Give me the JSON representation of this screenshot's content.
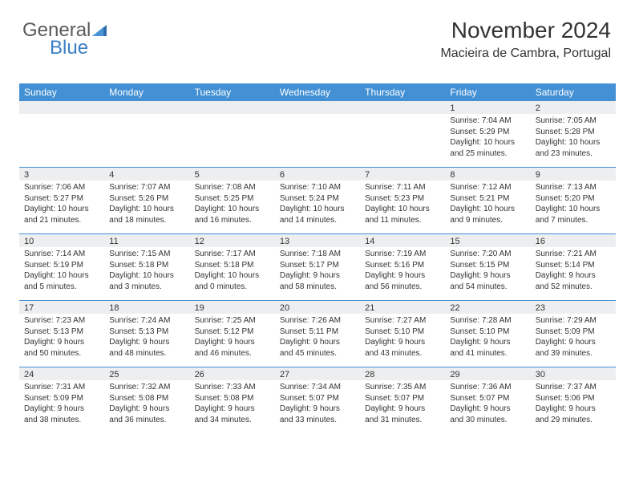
{
  "logo": {
    "text_general": "General",
    "text_blue": "Blue"
  },
  "header": {
    "title": "November 2024",
    "location": "Macieira de Cambra, Portugal"
  },
  "colors": {
    "header_bg": "#4390d4",
    "header_text": "#ffffff",
    "daynum_bg": "#eceeef",
    "border": "#4390d4",
    "text": "#333333",
    "logo_gray": "#5a5a5a",
    "logo_blue": "#3a7fc4"
  },
  "day_names": [
    "Sunday",
    "Monday",
    "Tuesday",
    "Wednesday",
    "Thursday",
    "Friday",
    "Saturday"
  ],
  "weeks": [
    [
      {
        "n": "",
        "sr": "",
        "ss": "",
        "dl": ""
      },
      {
        "n": "",
        "sr": "",
        "ss": "",
        "dl": ""
      },
      {
        "n": "",
        "sr": "",
        "ss": "",
        "dl": ""
      },
      {
        "n": "",
        "sr": "",
        "ss": "",
        "dl": ""
      },
      {
        "n": "",
        "sr": "",
        "ss": "",
        "dl": ""
      },
      {
        "n": "1",
        "sr": "Sunrise: 7:04 AM",
        "ss": "Sunset: 5:29 PM",
        "dl": "Daylight: 10 hours and 25 minutes."
      },
      {
        "n": "2",
        "sr": "Sunrise: 7:05 AM",
        "ss": "Sunset: 5:28 PM",
        "dl": "Daylight: 10 hours and 23 minutes."
      }
    ],
    [
      {
        "n": "3",
        "sr": "Sunrise: 7:06 AM",
        "ss": "Sunset: 5:27 PM",
        "dl": "Daylight: 10 hours and 21 minutes."
      },
      {
        "n": "4",
        "sr": "Sunrise: 7:07 AM",
        "ss": "Sunset: 5:26 PM",
        "dl": "Daylight: 10 hours and 18 minutes."
      },
      {
        "n": "5",
        "sr": "Sunrise: 7:08 AM",
        "ss": "Sunset: 5:25 PM",
        "dl": "Daylight: 10 hours and 16 minutes."
      },
      {
        "n": "6",
        "sr": "Sunrise: 7:10 AM",
        "ss": "Sunset: 5:24 PM",
        "dl": "Daylight: 10 hours and 14 minutes."
      },
      {
        "n": "7",
        "sr": "Sunrise: 7:11 AM",
        "ss": "Sunset: 5:23 PM",
        "dl": "Daylight: 10 hours and 11 minutes."
      },
      {
        "n": "8",
        "sr": "Sunrise: 7:12 AM",
        "ss": "Sunset: 5:21 PM",
        "dl": "Daylight: 10 hours and 9 minutes."
      },
      {
        "n": "9",
        "sr": "Sunrise: 7:13 AM",
        "ss": "Sunset: 5:20 PM",
        "dl": "Daylight: 10 hours and 7 minutes."
      }
    ],
    [
      {
        "n": "10",
        "sr": "Sunrise: 7:14 AM",
        "ss": "Sunset: 5:19 PM",
        "dl": "Daylight: 10 hours and 5 minutes."
      },
      {
        "n": "11",
        "sr": "Sunrise: 7:15 AM",
        "ss": "Sunset: 5:18 PM",
        "dl": "Daylight: 10 hours and 3 minutes."
      },
      {
        "n": "12",
        "sr": "Sunrise: 7:17 AM",
        "ss": "Sunset: 5:18 PM",
        "dl": "Daylight: 10 hours and 0 minutes."
      },
      {
        "n": "13",
        "sr": "Sunrise: 7:18 AM",
        "ss": "Sunset: 5:17 PM",
        "dl": "Daylight: 9 hours and 58 minutes."
      },
      {
        "n": "14",
        "sr": "Sunrise: 7:19 AM",
        "ss": "Sunset: 5:16 PM",
        "dl": "Daylight: 9 hours and 56 minutes."
      },
      {
        "n": "15",
        "sr": "Sunrise: 7:20 AM",
        "ss": "Sunset: 5:15 PM",
        "dl": "Daylight: 9 hours and 54 minutes."
      },
      {
        "n": "16",
        "sr": "Sunrise: 7:21 AM",
        "ss": "Sunset: 5:14 PM",
        "dl": "Daylight: 9 hours and 52 minutes."
      }
    ],
    [
      {
        "n": "17",
        "sr": "Sunrise: 7:23 AM",
        "ss": "Sunset: 5:13 PM",
        "dl": "Daylight: 9 hours and 50 minutes."
      },
      {
        "n": "18",
        "sr": "Sunrise: 7:24 AM",
        "ss": "Sunset: 5:13 PM",
        "dl": "Daylight: 9 hours and 48 minutes."
      },
      {
        "n": "19",
        "sr": "Sunrise: 7:25 AM",
        "ss": "Sunset: 5:12 PM",
        "dl": "Daylight: 9 hours and 46 minutes."
      },
      {
        "n": "20",
        "sr": "Sunrise: 7:26 AM",
        "ss": "Sunset: 5:11 PM",
        "dl": "Daylight: 9 hours and 45 minutes."
      },
      {
        "n": "21",
        "sr": "Sunrise: 7:27 AM",
        "ss": "Sunset: 5:10 PM",
        "dl": "Daylight: 9 hours and 43 minutes."
      },
      {
        "n": "22",
        "sr": "Sunrise: 7:28 AM",
        "ss": "Sunset: 5:10 PM",
        "dl": "Daylight: 9 hours and 41 minutes."
      },
      {
        "n": "23",
        "sr": "Sunrise: 7:29 AM",
        "ss": "Sunset: 5:09 PM",
        "dl": "Daylight: 9 hours and 39 minutes."
      }
    ],
    [
      {
        "n": "24",
        "sr": "Sunrise: 7:31 AM",
        "ss": "Sunset: 5:09 PM",
        "dl": "Daylight: 9 hours and 38 minutes."
      },
      {
        "n": "25",
        "sr": "Sunrise: 7:32 AM",
        "ss": "Sunset: 5:08 PM",
        "dl": "Daylight: 9 hours and 36 minutes."
      },
      {
        "n": "26",
        "sr": "Sunrise: 7:33 AM",
        "ss": "Sunset: 5:08 PM",
        "dl": "Daylight: 9 hours and 34 minutes."
      },
      {
        "n": "27",
        "sr": "Sunrise: 7:34 AM",
        "ss": "Sunset: 5:07 PM",
        "dl": "Daylight: 9 hours and 33 minutes."
      },
      {
        "n": "28",
        "sr": "Sunrise: 7:35 AM",
        "ss": "Sunset: 5:07 PM",
        "dl": "Daylight: 9 hours and 31 minutes."
      },
      {
        "n": "29",
        "sr": "Sunrise: 7:36 AM",
        "ss": "Sunset: 5:07 PM",
        "dl": "Daylight: 9 hours and 30 minutes."
      },
      {
        "n": "30",
        "sr": "Sunrise: 7:37 AM",
        "ss": "Sunset: 5:06 PM",
        "dl": "Daylight: 9 hours and 29 minutes."
      }
    ]
  ]
}
